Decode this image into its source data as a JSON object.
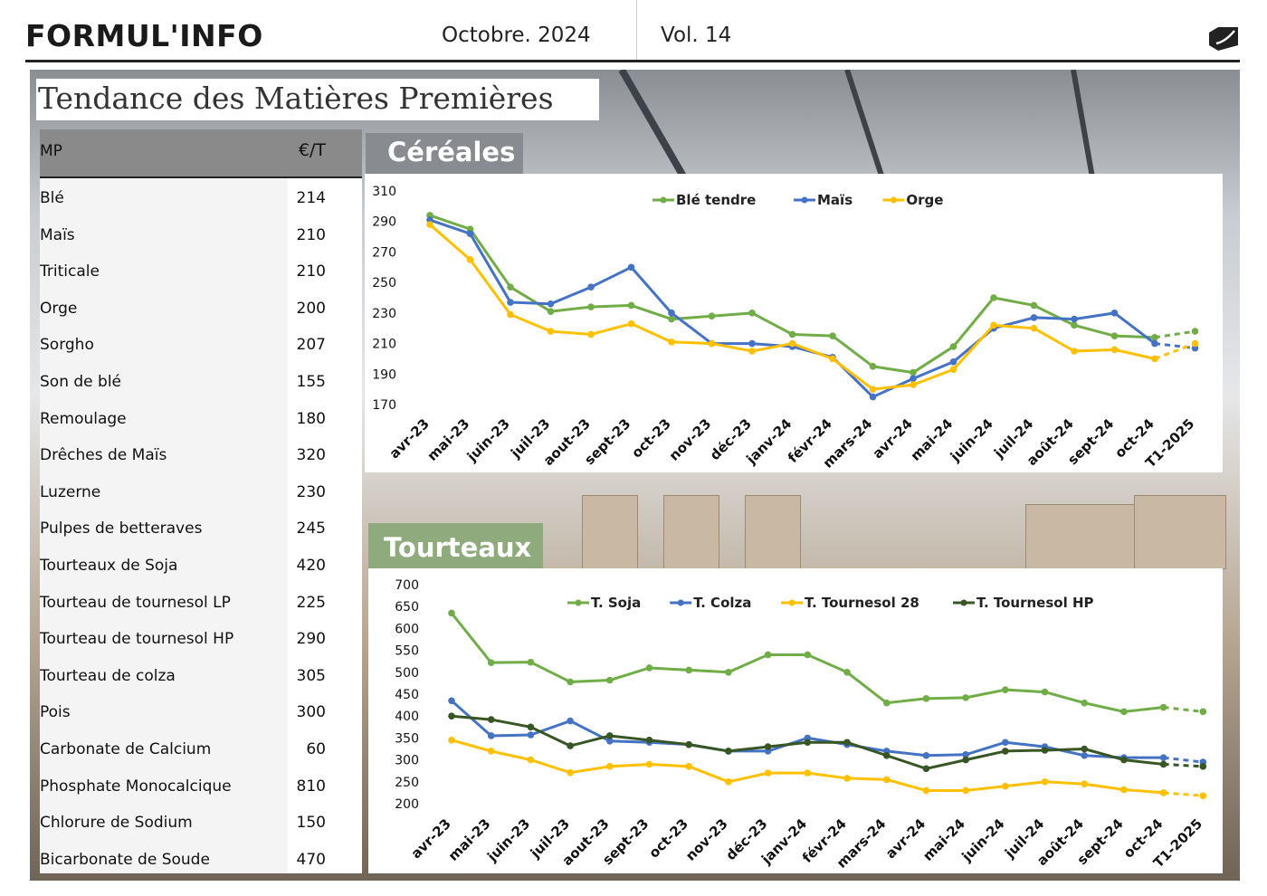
{
  "header": {
    "brand": "FORMUL'INFO",
    "date": "Octobre. 2024",
    "volume": "Vol. 14",
    "logo_icon": "tag-logo-icon"
  },
  "page_title": "Tendance des Matières Premières",
  "table": {
    "col1": "MP",
    "col2": "€/T",
    "rows": [
      {
        "name": "Blé",
        "price": "214"
      },
      {
        "name": "Maïs",
        "price": "210"
      },
      {
        "name": "Triticale",
        "price": "210"
      },
      {
        "name": "Orge",
        "price": "200"
      },
      {
        "name": "Sorgho",
        "price": "207"
      },
      {
        "name": "Son de blé",
        "price": "155"
      },
      {
        "name": "Remoulage",
        "price": "180"
      },
      {
        "name": "Drêches de Maïs",
        "price": "320"
      },
      {
        "name": "Luzerne",
        "price": "230"
      },
      {
        "name": "Pulpes de betteraves",
        "price": "245"
      },
      {
        "name": "Tourteaux de Soja",
        "price": "420"
      },
      {
        "name": "Tourteau de tournesol LP",
        "price": "225"
      },
      {
        "name": "Tourteau de tournesol HP",
        "price": "290"
      },
      {
        "name": "Tourteau de colza",
        "price": "305"
      },
      {
        "name": "Pois",
        "price": "300"
      },
      {
        "name": "Carbonate de Calcium",
        "price": "60"
      },
      {
        "name": "Phosphate Monocalcique",
        "price": "810"
      },
      {
        "name": "Chlorure de Sodium",
        "price": "150"
      },
      {
        "name": "Bicarbonate de Soude",
        "price": "470"
      }
    ]
  },
  "sections": {
    "cereales": "Céréales",
    "tourteaux": "Tourteaux"
  },
  "chart_data": [
    {
      "type": "line",
      "categories": [
        "avr-23",
        "mai-23",
        "juin-23",
        "juil-23",
        "aout-23",
        "sept-23",
        "oct-23",
        "nov-23",
        "déc-23",
        "janv-24",
        "févr-24",
        "mars-24",
        "avr-24",
        "mai-24",
        "juin-24",
        "juil-24",
        "août-24",
        "sept-24",
        "oct-24",
        "T1-2025"
      ],
      "ylim": [
        170,
        310
      ],
      "yticks": [
        310,
        290,
        270,
        250,
        230,
        210,
        190,
        170
      ],
      "legend_position": "top",
      "forecast_last_point_dashed": true,
      "series": [
        {
          "name": "Blé tendre",
          "color": "#70ad47",
          "values": [
            294,
            285,
            247,
            231,
            234,
            235,
            226,
            228,
            230,
            216,
            215,
            195,
            191,
            208,
            240,
            235,
            222,
            215,
            214,
            218
          ]
        },
        {
          "name": "Maïs",
          "color": "#4472c4",
          "values": [
            291,
            282,
            237,
            236,
            247,
            260,
            230,
            210,
            210,
            208,
            201,
            175,
            187,
            198,
            220,
            227,
            226,
            230,
            210,
            207
          ]
        },
        {
          "name": "Orge",
          "color": "#ffc000",
          "values": [
            288,
            265,
            229,
            218,
            216,
            223,
            211,
            210,
            205,
            210,
            200,
            180,
            183,
            193,
            222,
            220,
            205,
            206,
            200,
            210
          ]
        }
      ]
    },
    {
      "type": "line",
      "categories": [
        "avr-23",
        "mai-23",
        "juin-23",
        "juil-23",
        "aout-23",
        "sept-23",
        "oct-23",
        "nov-23",
        "déc-23",
        "janv-24",
        "févr-24",
        "mars-24",
        "avr-24",
        "mai-24",
        "juin-24",
        "juil-24",
        "août-24",
        "sept-24",
        "oct-24",
        "T1-2025"
      ],
      "ylim": [
        200,
        700
      ],
      "yticks": [
        700,
        650,
        600,
        550,
        500,
        450,
        400,
        350,
        300,
        250,
        200
      ],
      "legend_position": "top",
      "forecast_last_point_dashed": true,
      "series": [
        {
          "name": "T. Soja",
          "color": "#70ad47",
          "values": [
            635,
            522,
            523,
            478,
            482,
            510,
            505,
            500,
            540,
            540,
            500,
            430,
            440,
            442,
            460,
            455,
            430,
            410,
            420,
            410
          ]
        },
        {
          "name": "T. Colza",
          "color": "#4472c4",
          "values": [
            435,
            355,
            357,
            389,
            343,
            340,
            335,
            320,
            320,
            350,
            335,
            320,
            310,
            312,
            340,
            330,
            310,
            305,
            305,
            295
          ]
        },
        {
          "name": "T. Tournesol 28",
          "color": "#ffc000",
          "values": [
            345,
            320,
            300,
            271,
            285,
            290,
            285,
            250,
            270,
            270,
            258,
            255,
            230,
            230,
            240,
            250,
            245,
            232,
            225,
            218
          ]
        },
        {
          "name": "T. Tournesol HP",
          "color": "#375623",
          "values": [
            400,
            392,
            375,
            332,
            355,
            345,
            335,
            320,
            330,
            340,
            340,
            310,
            280,
            300,
            320,
            322,
            325,
            300,
            290,
            285
          ]
        }
      ]
    }
  ]
}
